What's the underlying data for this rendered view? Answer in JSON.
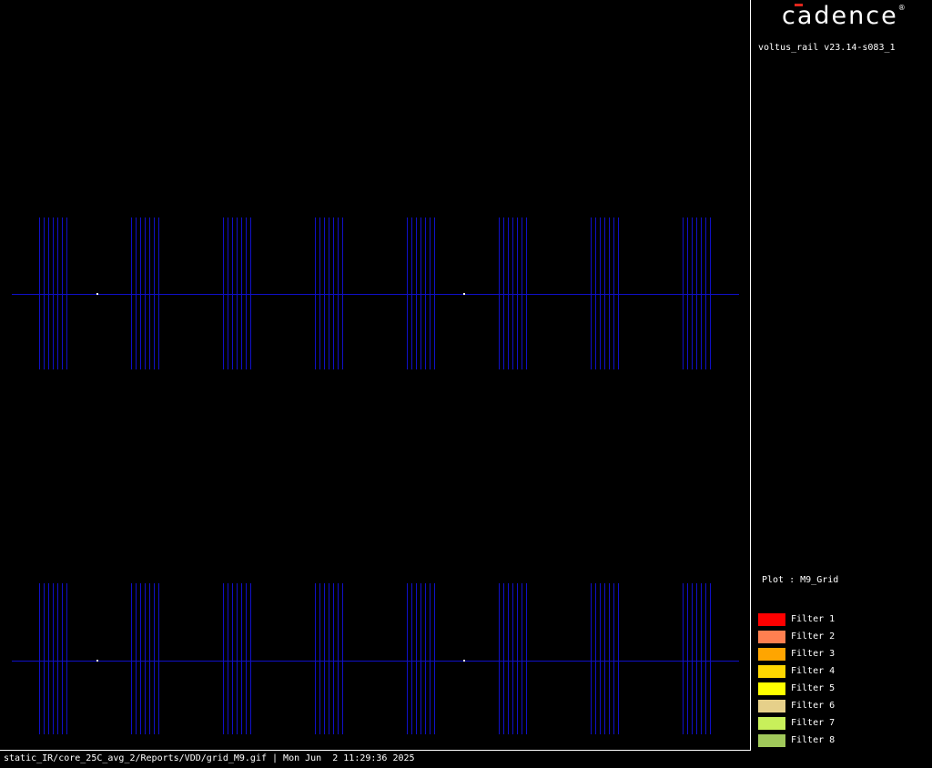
{
  "app": {
    "logo_text": "cadence",
    "logo_reg_mark": "®",
    "version": "voltus_rail v23.14-s083_1"
  },
  "plot": {
    "label": "Plot : M9_Grid",
    "grid_color": "#1010c8",
    "via_color": "#ffffff",
    "background": "#000000"
  },
  "legend": {
    "items": [
      {
        "label": "Filter 1",
        "color": "#ff0000"
      },
      {
        "label": "Filter 2",
        "color": "#ff7f50"
      },
      {
        "label": "Filter 3",
        "color": "#ffa500"
      },
      {
        "label": "Filter 4",
        "color": "#ffd700"
      },
      {
        "label": "Filter 5",
        "color": "#ffff00"
      },
      {
        "label": "Filter 6",
        "color": "#e6d08a"
      },
      {
        "label": "Filter 7",
        "color": "#c8f05a"
      },
      {
        "label": "Filter 8",
        "color": "#a0c85a"
      }
    ]
  },
  "status_bar": {
    "text": "static_IR/core_25C_avg_2/Reports/VDD/grid_M9.gif | Mon Jun  2 11:29:36 2025"
  }
}
